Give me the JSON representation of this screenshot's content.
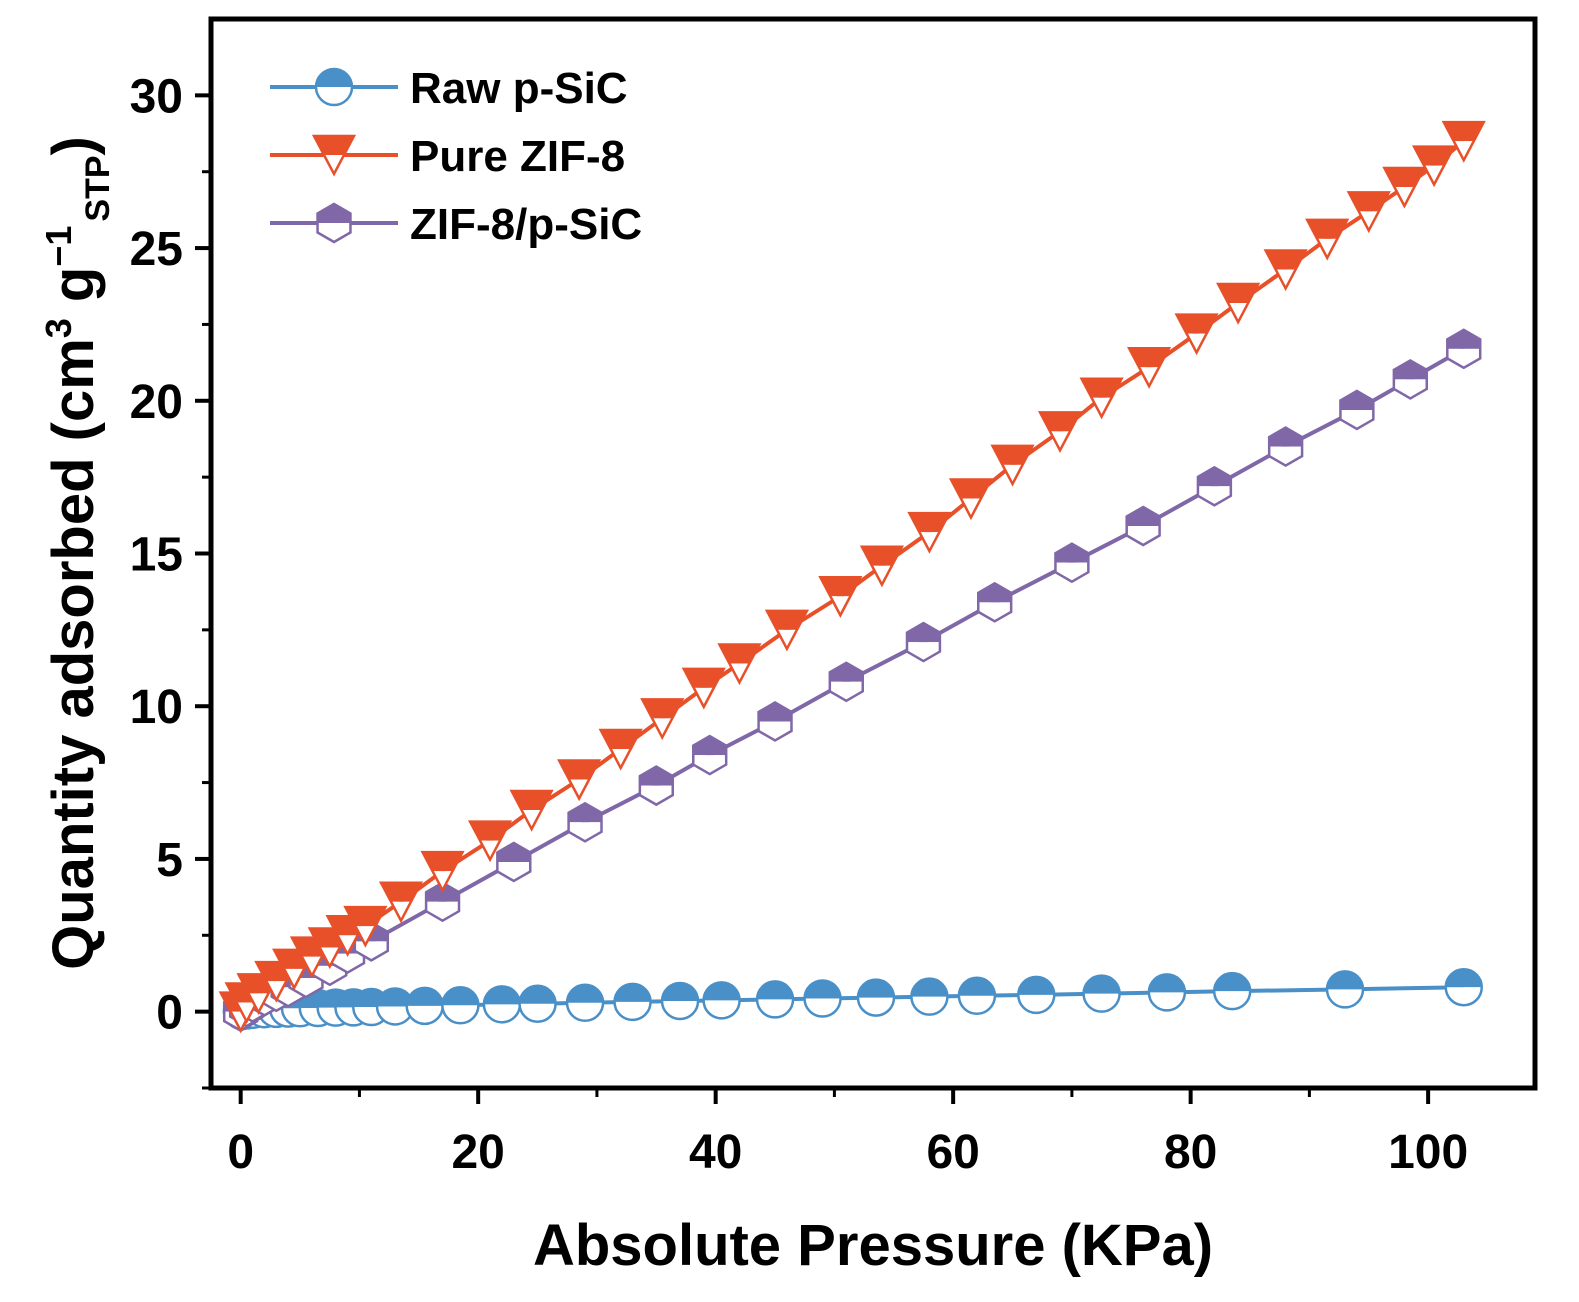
{
  "chart_data": {
    "type": "line",
    "title": "",
    "xlabel": "Absolute Pressure (KPa)",
    "ylabel": {
      "main": "Quantity adsorbed (cm",
      "sup3": "3",
      "mid": " g",
      "supneg": "−1",
      "sub": "STP",
      "close": ")"
    },
    "xlim": [
      -2.5,
      109
    ],
    "ylim": [
      -2.5,
      32.5
    ],
    "x_ticks": [
      0,
      20,
      40,
      60,
      80,
      100
    ],
    "x_tick_labels": [
      "0",
      "20",
      "40",
      "60",
      "80",
      "100"
    ],
    "y_ticks": [
      0,
      5,
      10,
      15,
      20,
      25,
      30
    ],
    "y_tick_labels": [
      "0",
      "5",
      "10",
      "15",
      "20",
      "25",
      "30"
    ],
    "legend_position": "top-left",
    "series": [
      {
        "name": "Raw p-SiC",
        "color": "#4a90c8",
        "marker": "circle",
        "x": [
          0.1,
          0.5,
          1,
          2,
          3,
          4,
          5,
          6.5,
          8,
          9.5,
          11,
          13,
          15.5,
          18.5,
          22,
          25,
          29,
          33,
          37,
          40.5,
          45,
          49,
          53.5,
          58,
          62,
          67,
          72.5,
          78,
          83.5,
          93,
          103
        ],
        "values": [
          0.02,
          0.04,
          0.06,
          0.08,
          0.09,
          0.1,
          0.11,
          0.12,
          0.13,
          0.14,
          0.15,
          0.17,
          0.19,
          0.21,
          0.24,
          0.26,
          0.29,
          0.32,
          0.35,
          0.37,
          0.4,
          0.43,
          0.46,
          0.49,
          0.52,
          0.55,
          0.59,
          0.63,
          0.67,
          0.73,
          0.8
        ]
      },
      {
        "name": "Pure ZIF-8",
        "color": "#e8502a",
        "marker": "triangle-down",
        "x": [
          0,
          0.5,
          1.5,
          3,
          4.5,
          6,
          7.5,
          9,
          10.5,
          13.5,
          17,
          21,
          24.5,
          28.5,
          32,
          35.5,
          39,
          42,
          46,
          50.5,
          54,
          58,
          61.5,
          65,
          69,
          72.5,
          76.5,
          80.5,
          84,
          88,
          91.5,
          95,
          98,
          100.5,
          103
        ],
        "values": [
          0.0,
          0.3,
          0.6,
          1.0,
          1.4,
          1.8,
          2.1,
          2.5,
          2.8,
          3.6,
          4.6,
          5.6,
          6.6,
          7.6,
          8.6,
          9.6,
          10.6,
          11.4,
          12.5,
          13.6,
          14.6,
          15.7,
          16.8,
          17.9,
          19.0,
          20.1,
          21.1,
          22.2,
          23.2,
          24.3,
          25.3,
          26.2,
          27.0,
          27.7,
          28.5
        ]
      },
      {
        "name": "ZIF-8/p-SiC",
        "color": "#8068a8",
        "marker": "hexagon",
        "x": [
          0,
          0.5,
          1,
          2,
          3,
          4,
          5.5,
          7.5,
          9,
          11,
          17,
          23,
          29,
          35,
          39.5,
          45,
          51,
          57.5,
          63.5,
          70,
          76,
          82,
          88,
          94,
          98.5,
          103
        ],
        "values": [
          0.0,
          0.15,
          0.3,
          0.5,
          0.65,
          0.8,
          1.1,
          1.5,
          1.9,
          2.3,
          3.6,
          4.9,
          6.2,
          7.4,
          8.4,
          9.5,
          10.8,
          12.1,
          13.4,
          14.7,
          15.9,
          17.2,
          18.5,
          19.7,
          20.7,
          21.7
        ]
      }
    ]
  }
}
